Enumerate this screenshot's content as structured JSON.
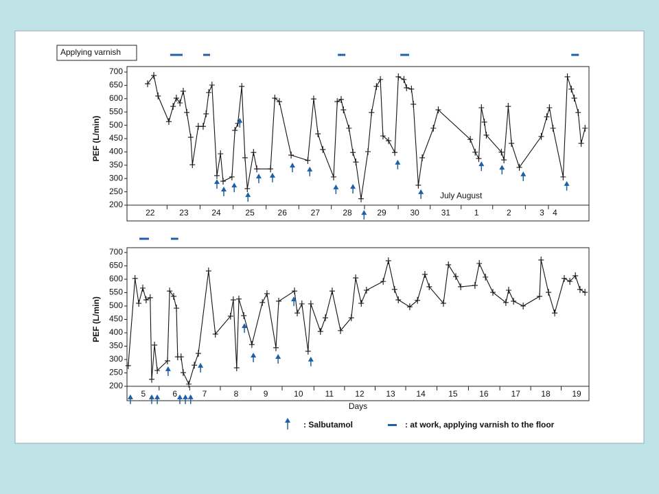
{
  "chart_data": [
    {
      "type": "line",
      "ylabel": "PEF (L/min)",
      "annotations": [
        "Applying varnish",
        "July August"
      ],
      "xlim": [
        -0.21,
        13.92
      ],
      "xticks": [
        {
          "value": 0.5,
          "label": "22"
        },
        {
          "value": 1.53,
          "label": "23"
        },
        {
          "value": 2.52,
          "label": "24"
        },
        {
          "value": 3.55,
          "label": "25"
        },
        {
          "value": 4.54,
          "label": "26"
        },
        {
          "value": 5.55,
          "label": "27"
        },
        {
          "value": 6.53,
          "label": "28"
        },
        {
          "value": 7.58,
          "label": "29"
        },
        {
          "value": 8.59,
          "label": "30"
        },
        {
          "value": 9.54,
          "label": "31"
        },
        {
          "value": 10.48,
          "label": "1"
        },
        {
          "value": 11.47,
          "label": "2"
        },
        {
          "value": 12.48,
          "label": "3"
        },
        {
          "value": 12.88,
          "label": "4"
        }
      ],
      "ylim": [
        200,
        700
      ],
      "yticks": [
        200,
        250,
        300,
        350,
        400,
        450,
        500,
        550,
        600,
        650,
        700
      ],
      "color": "#111111",
      "marker_color": "#1f5fa8",
      "x": [
        0.42,
        0.61,
        0.74,
        1.07,
        1.2,
        1.3,
        1.41,
        1.51,
        1.62,
        1.74,
        1.79,
        1.97,
        2.12,
        2.21,
        2.29,
        2.39,
        2.54,
        2.65,
        2.73,
        3.0,
        3.09,
        3.18,
        3.3,
        3.4,
        3.47,
        3.66,
        3.76,
        4.18,
        4.31,
        4.45,
        4.81,
        5.32,
        5.5,
        5.63,
        5.78,
        6.11,
        6.22,
        6.34,
        6.41,
        6.58,
        6.7,
        6.79,
        6.95,
        7.16,
        7.27,
        7.42,
        7.54,
        7.62,
        7.79,
        7.98,
        8.09,
        8.26,
        8.34,
        8.49,
        8.55,
        8.7,
        8.82,
        9.16,
        9.31,
        10.29,
        10.44,
        10.55,
        10.63,
        10.72,
        10.78,
        11.24,
        11.32,
        11.45,
        11.55,
        11.79,
        12.46,
        12.63,
        12.71,
        12.82,
        13.13,
        13.26,
        13.38,
        13.47,
        13.59,
        13.68,
        13.8
      ],
      "values": [
        656,
        687,
        610,
        514,
        571,
        602,
        584,
        628,
        548,
        455,
        352,
        496,
        496,
        543,
        623,
        651,
        311,
        393,
        290,
        306,
        481,
        507,
        646,
        378,
        262,
        398,
        336,
        336,
        602,
        589,
        388,
        368,
        599,
        468,
        409,
        306,
        589,
        597,
        558,
        489,
        398,
        362,
        224,
        401,
        548,
        646,
        672,
        460,
        442,
        398,
        682,
        672,
        641,
        636,
        579,
        275,
        378,
        489,
        558,
        447,
        399,
        375,
        566,
        512,
        463,
        399,
        370,
        571,
        432,
        342,
        458,
        532,
        566,
        489,
        306,
        682,
        636,
        602,
        548,
        432,
        489
      ],
      "salbutamol": [
        {
          "x": 2.54,
          "y": 295
        },
        {
          "x": 2.75,
          "y": 267
        },
        {
          "x": 3.07,
          "y": 282
        },
        {
          "x": 3.24,
          "y": 525
        },
        {
          "x": 3.49,
          "y": 246
        },
        {
          "x": 3.82,
          "y": 316
        },
        {
          "x": 4.24,
          "y": 319
        },
        {
          "x": 4.85,
          "y": 357
        },
        {
          "x": 5.38,
          "y": 342
        },
        {
          "x": 6.18,
          "y": 275
        },
        {
          "x": 6.7,
          "y": 277
        },
        {
          "x": 7.04,
          "y": 179
        },
        {
          "x": 8.07,
          "y": 368
        },
        {
          "x": 8.78,
          "y": 257
        },
        {
          "x": 10.63,
          "y": 362
        },
        {
          "x": 11.26,
          "y": 349
        },
        {
          "x": 11.91,
          "y": 324
        },
        {
          "x": 13.24,
          "y": 288
        }
      ],
      "work": [
        [
          1.11,
          1.49
        ],
        [
          2.12,
          2.33
        ],
        [
          6.24,
          6.47
        ],
        [
          8.15,
          8.42
        ],
        [
          13.38,
          13.61
        ]
      ]
    },
    {
      "type": "line",
      "ylabel": "PEF (L/min)",
      "xlabel": "Days",
      "xlim": [
        -0.02,
        14.93
      ],
      "xticks": [
        {
          "value": 0.51,
          "label": "5"
        },
        {
          "value": 1.53,
          "label": "6"
        },
        {
          "value": 2.49,
          "label": "7"
        },
        {
          "value": 3.51,
          "label": "8"
        },
        {
          "value": 4.47,
          "label": "9"
        },
        {
          "value": 5.53,
          "label": "10"
        },
        {
          "value": 6.53,
          "label": "11"
        },
        {
          "value": 7.51,
          "label": "12"
        },
        {
          "value": 8.51,
          "label": "13"
        },
        {
          "value": 9.49,
          "label": "14"
        },
        {
          "value": 10.53,
          "label": "15"
        },
        {
          "value": 11.53,
          "label": "16"
        },
        {
          "value": 12.56,
          "label": "17"
        },
        {
          "value": 13.53,
          "label": "18"
        },
        {
          "value": 14.53,
          "label": "19"
        }
      ],
      "ylim": [
        200,
        700
      ],
      "yticks": [
        200,
        250,
        300,
        350,
        400,
        450,
        500,
        550,
        600,
        650,
        700
      ],
      "color": "#111111",
      "marker_color": "#1f5fa8",
      "x": [
        0.02,
        0.24,
        0.36,
        0.49,
        0.6,
        0.73,
        0.78,
        0.87,
        0.96,
        1.29,
        1.36,
        1.49,
        1.58,
        1.62,
        1.73,
        1.8,
        1.98,
        2.16,
        2.29,
        2.62,
        2.84,
        3.33,
        3.42,
        3.53,
        3.6,
        3.76,
        4.02,
        4.36,
        4.51,
        4.8,
        4.89,
        5.4,
        5.49,
        5.64,
        5.84,
        5.93,
        6.24,
        6.4,
        6.62,
        6.89,
        7.24,
        7.38,
        7.56,
        7.73,
        8.27,
        8.44,
        8.64,
        8.76,
        9.13,
        9.38,
        9.62,
        9.76,
        10.22,
        10.38,
        10.62,
        10.78,
        11.24,
        11.38,
        11.58,
        11.82,
        12.24,
        12.33,
        12.49,
        12.8,
        13.33,
        13.38,
        13.62,
        13.82,
        14.13,
        14.31,
        14.49,
        14.64,
        14.8
      ],
      "values": [
        277,
        603,
        510,
        567,
        523,
        531,
        226,
        354,
        259,
        295,
        556,
        536,
        492,
        310,
        310,
        251,
        208,
        279,
        323,
        631,
        395,
        462,
        523,
        269,
        526,
        464,
        356,
        513,
        546,
        344,
        518,
        556,
        474,
        508,
        331,
        508,
        405,
        456,
        556,
        408,
        456,
        605,
        510,
        559,
        592,
        669,
        562,
        523,
        497,
        521,
        618,
        572,
        510,
        654,
        610,
        572,
        577,
        659,
        608,
        551,
        513,
        559,
        518,
        500,
        536,
        672,
        551,
        474,
        603,
        592,
        613,
        562,
        551
      ],
      "salbutamol": [
        {
          "x": 0.09,
          "y": 167
        },
        {
          "x": 0.78,
          "y": 167
        },
        {
          "x": 0.96,
          "y": 167
        },
        {
          "x": 1.69,
          "y": 167
        },
        {
          "x": 1.87,
          "y": 167
        },
        {
          "x": 2.04,
          "y": 167
        },
        {
          "x": 1.31,
          "y": 272
        },
        {
          "x": 2.36,
          "y": 285
        },
        {
          "x": 3.78,
          "y": 433
        },
        {
          "x": 4.07,
          "y": 323
        },
        {
          "x": 4.87,
          "y": 318
        },
        {
          "x": 5.38,
          "y": 533
        },
        {
          "x": 5.93,
          "y": 308
        }
      ],
      "work": [
        [
          0.38,
          0.69
        ],
        [
          1.4,
          1.64
        ]
      ]
    }
  ],
  "legend": {
    "salbutamol": ": Salbutamol",
    "work": ": at work, applying varnish to the floor"
  }
}
